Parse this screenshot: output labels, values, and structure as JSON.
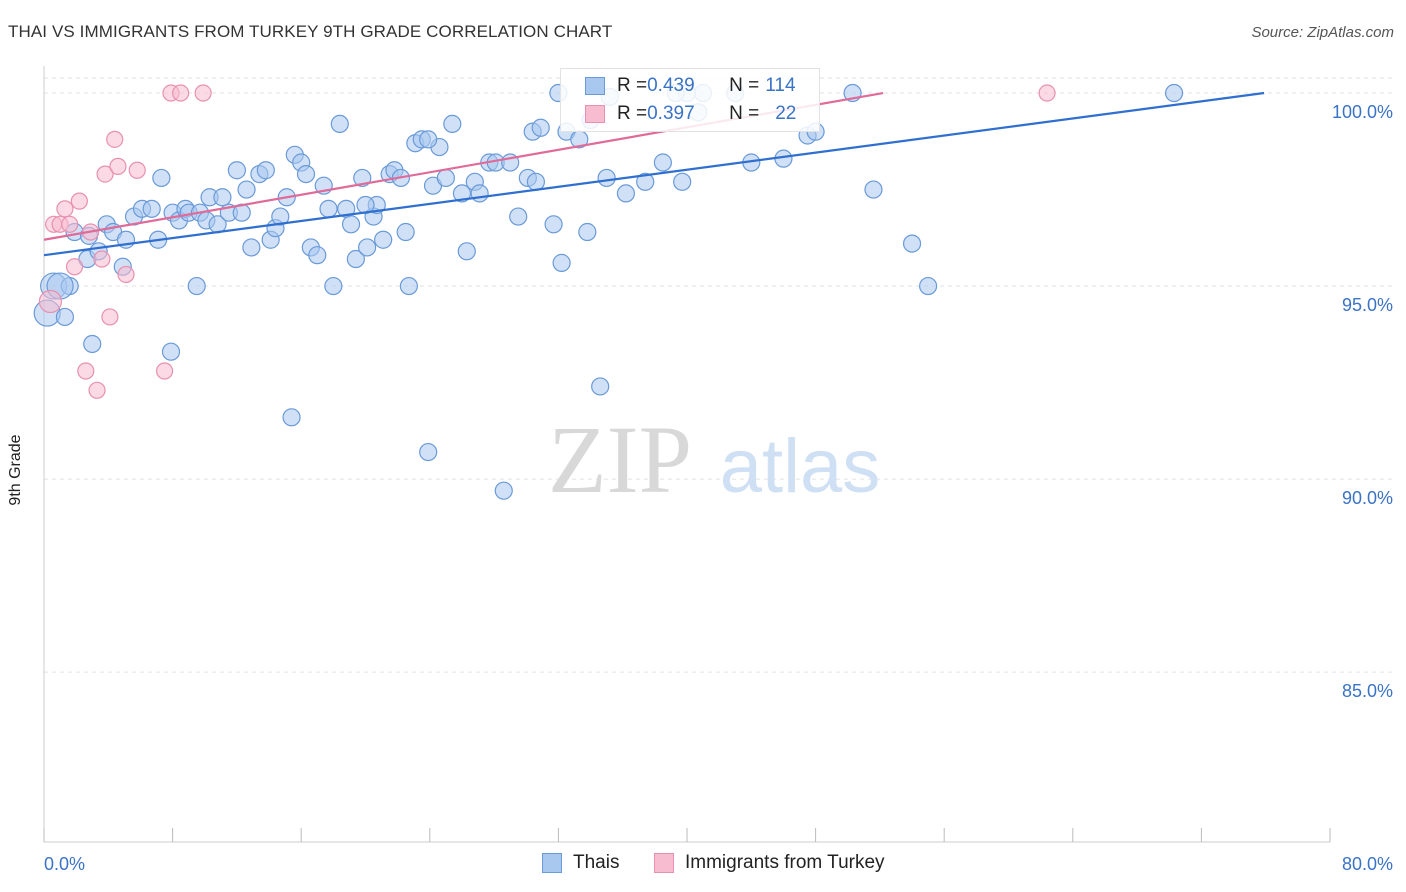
{
  "header": {
    "title": "THAI VS IMMIGRANTS FROM TURKEY 9TH GRADE CORRELATION CHART",
    "source": "Source: ZipAtlas.com"
  },
  "watermark": {
    "zip": "ZIP",
    "atlas": "atlas"
  },
  "legend_top": {
    "rows": [
      {
        "r_label": "R = ",
        "r_value": "0.439",
        "n_label": "N = ",
        "n_value": "114"
      },
      {
        "r_label": "R = ",
        "r_value": "0.397",
        "n_label": "N = ",
        "n_value": "22"
      }
    ]
  },
  "legend_bottom": {
    "items": [
      "Thais",
      "Immigrants from Turkey"
    ]
  },
  "colors": {
    "blue_fill": "#a9c8f0",
    "blue_stroke": "#6a9ad8",
    "blue_line": "#2f6fd0",
    "pink_fill": "#f7bcd0",
    "pink_stroke": "#e890b0",
    "pink_line": "#e06a98",
    "tick_label": "#3a73c6",
    "grid": "#e2e2e2"
  },
  "chart_data": {
    "type": "scatter",
    "title": "THAI VS IMMIGRANTS FROM TURKEY 9TH GRADE CORRELATION CHART",
    "xlabel": "",
    "ylabel": "9th Grade",
    "xlim": [
      0,
      80
    ],
    "ylim": [
      80.6,
      100.7
    ],
    "x_tick_labels": [
      "0.0%",
      "80.0%"
    ],
    "y_ticks": [
      85,
      90,
      95,
      100
    ],
    "y_tick_labels": [
      "85.0%",
      "90.0%",
      "95.0%",
      "100.0%"
    ],
    "grid": true,
    "legend_position": "top-center",
    "series": [
      {
        "name": "Thais",
        "r": 0.439,
        "n": 114,
        "trend": {
          "x": [
            0,
            75.9
          ],
          "y": [
            95.8,
            100.0
          ]
        },
        "points": [
          [
            0.2,
            94.3
          ],
          [
            0.6,
            95.0
          ],
          [
            1.3,
            94.2
          ],
          [
            1.6,
            95.0
          ],
          [
            1.0,
            95.0
          ],
          [
            1.9,
            96.4
          ],
          [
            2.8,
            96.3
          ],
          [
            2.7,
            95.7
          ],
          [
            3.4,
            95.9
          ],
          [
            3.0,
            93.5
          ],
          [
            3.9,
            96.6
          ],
          [
            4.3,
            96.4
          ],
          [
            4.9,
            95.5
          ],
          [
            5.1,
            96.2
          ],
          [
            5.6,
            96.8
          ],
          [
            6.1,
            97.0
          ],
          [
            6.7,
            97.0
          ],
          [
            7.1,
            96.2
          ],
          [
            7.3,
            97.8
          ],
          [
            7.9,
            93.3
          ],
          [
            8.0,
            96.9
          ],
          [
            8.4,
            96.7
          ],
          [
            8.8,
            97.0
          ],
          [
            9.0,
            96.9
          ],
          [
            9.5,
            95.0
          ],
          [
            9.7,
            96.9
          ],
          [
            10.1,
            96.7
          ],
          [
            10.3,
            97.3
          ],
          [
            10.8,
            96.6
          ],
          [
            11.1,
            97.3
          ],
          [
            11.5,
            96.9
          ],
          [
            12.0,
            98.0
          ],
          [
            12.3,
            96.9
          ],
          [
            12.6,
            97.5
          ],
          [
            12.9,
            96.0
          ],
          [
            13.4,
            97.9
          ],
          [
            13.8,
            98.0
          ],
          [
            14.1,
            96.2
          ],
          [
            14.4,
            96.5
          ],
          [
            14.7,
            96.8
          ],
          [
            15.1,
            97.3
          ],
          [
            15.4,
            91.6
          ],
          [
            15.6,
            98.4
          ],
          [
            16.0,
            98.2
          ],
          [
            16.3,
            97.9
          ],
          [
            16.6,
            96.0
          ],
          [
            17.0,
            95.8
          ],
          [
            17.4,
            97.6
          ],
          [
            17.7,
            97.0
          ],
          [
            18.0,
            95.0
          ],
          [
            18.4,
            99.2
          ],
          [
            18.8,
            97.0
          ],
          [
            19.1,
            96.6
          ],
          [
            19.4,
            95.7
          ],
          [
            19.8,
            97.8
          ],
          [
            20.1,
            96.0
          ],
          [
            20.5,
            96.8
          ],
          [
            20.7,
            97.1
          ],
          [
            21.1,
            96.2
          ],
          [
            21.5,
            97.9
          ],
          [
            21.8,
            98.0
          ],
          [
            22.2,
            97.8
          ],
          [
            22.5,
            96.4
          ],
          [
            22.7,
            95.0
          ],
          [
            23.1,
            98.7
          ],
          [
            23.5,
            98.8
          ],
          [
            23.9,
            90.7
          ],
          [
            24.2,
            97.6
          ],
          [
            24.6,
            98.6
          ],
          [
            25.0,
            97.8
          ],
          [
            25.4,
            99.2
          ],
          [
            26.0,
            97.4
          ],
          [
            26.3,
            95.9
          ],
          [
            26.8,
            97.7
          ],
          [
            27.1,
            97.4
          ],
          [
            27.7,
            98.2
          ],
          [
            28.1,
            98.2
          ],
          [
            28.6,
            89.7
          ],
          [
            29.0,
            98.2
          ],
          [
            29.5,
            96.8
          ],
          [
            30.1,
            97.8
          ],
          [
            30.6,
            97.7
          ],
          [
            31.7,
            96.6
          ],
          [
            32.2,
            95.6
          ],
          [
            32.5,
            99.0
          ],
          [
            33.3,
            98.8
          ],
          [
            33.8,
            96.4
          ],
          [
            34.0,
            99.3
          ],
          [
            34.6,
            92.4
          ],
          [
            35.0,
            97.8
          ],
          [
            35.2,
            99.9
          ],
          [
            36.2,
            97.4
          ],
          [
            37.4,
            97.7
          ],
          [
            38.5,
            98.2
          ],
          [
            39.7,
            97.7
          ],
          [
            41.0,
            100.0
          ],
          [
            43.0,
            100.0
          ],
          [
            44.0,
            98.2
          ],
          [
            46.0,
            98.3
          ],
          [
            47.5,
            98.9
          ],
          [
            48.0,
            99.0
          ],
          [
            50.3,
            100.0
          ],
          [
            51.6,
            97.5
          ],
          [
            54.0,
            96.1
          ],
          [
            55.0,
            95.0
          ],
          [
            70.3,
            100.0
          ],
          [
            32.0,
            100.0
          ],
          [
            40.7,
            99.5
          ],
          [
            40.0,
            100.0
          ],
          [
            39.3,
            100.0
          ],
          [
            30.4,
            99.0
          ],
          [
            30.9,
            99.1
          ],
          [
            23.9,
            98.8
          ],
          [
            20.0,
            97.1
          ]
        ]
      },
      {
        "name": "Immigrants from Turkey",
        "r": 0.397,
        "n": 22,
        "trend": {
          "x": [
            0,
            52.2
          ],
          "y": [
            96.2,
            100.0
          ]
        },
        "points": [
          [
            0.4,
            94.6
          ],
          [
            0.6,
            96.6
          ],
          [
            1.0,
            96.6
          ],
          [
            1.3,
            97.0
          ],
          [
            1.6,
            96.6
          ],
          [
            1.9,
            95.5
          ],
          [
            2.2,
            97.2
          ],
          [
            2.6,
            92.8
          ],
          [
            2.9,
            96.4
          ],
          [
            3.3,
            92.3
          ],
          [
            3.6,
            95.7
          ],
          [
            3.8,
            97.9
          ],
          [
            4.1,
            94.2
          ],
          [
            4.4,
            98.8
          ],
          [
            4.6,
            98.1
          ],
          [
            5.1,
            95.3
          ],
          [
            5.8,
            98.0
          ],
          [
            7.5,
            92.8
          ],
          [
            7.9,
            100.0
          ],
          [
            8.5,
            100.0
          ],
          [
            9.9,
            100.0
          ],
          [
            62.4,
            100.0
          ]
        ]
      }
    ]
  }
}
